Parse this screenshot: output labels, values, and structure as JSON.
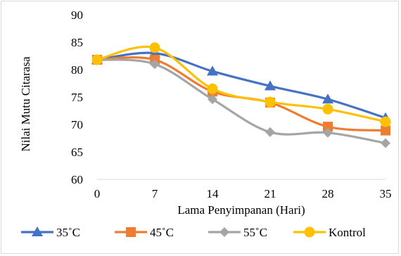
{
  "chart_data": {
    "type": "line",
    "xlabel": "Lama Penyimpanan (Hari)",
    "ylabel": "Nilai Mutu Citarasa",
    "x": [
      0,
      7,
      14,
      21,
      28,
      35
    ],
    "x_tick_labels": [
      "0",
      "7",
      "14",
      "21",
      "28",
      "35"
    ],
    "ylim": [
      60,
      90
    ],
    "y_ticks": [
      60,
      65,
      70,
      75,
      80,
      85,
      90
    ],
    "y_tick_labels": [
      "60",
      "65",
      "70",
      "75",
      "80",
      "85",
      "90"
    ],
    "grid": false,
    "smooth": true,
    "legend_position": "bottom",
    "series": [
      {
        "name": "35˚C",
        "values": [
          81.8,
          83.0,
          79.7,
          77.0,
          74.6,
          71.2
        ],
        "color": "#4472C4",
        "marker": "triangle"
      },
      {
        "name": "45˚C",
        "values": [
          81.8,
          81.8,
          76.0,
          74.0,
          69.6,
          68.9
        ],
        "color": "#ED7D31",
        "marker": "square"
      },
      {
        "name": "55˚C",
        "values": [
          81.8,
          81.0,
          74.6,
          68.6,
          68.5,
          66.6
        ],
        "color": "#A5A5A5",
        "marker": "diamond"
      },
      {
        "name": "Kontrol",
        "values": [
          81.8,
          84.0,
          76.5,
          74.1,
          72.8,
          70.5
        ],
        "color": "#FFC000",
        "marker": "circle"
      }
    ]
  }
}
